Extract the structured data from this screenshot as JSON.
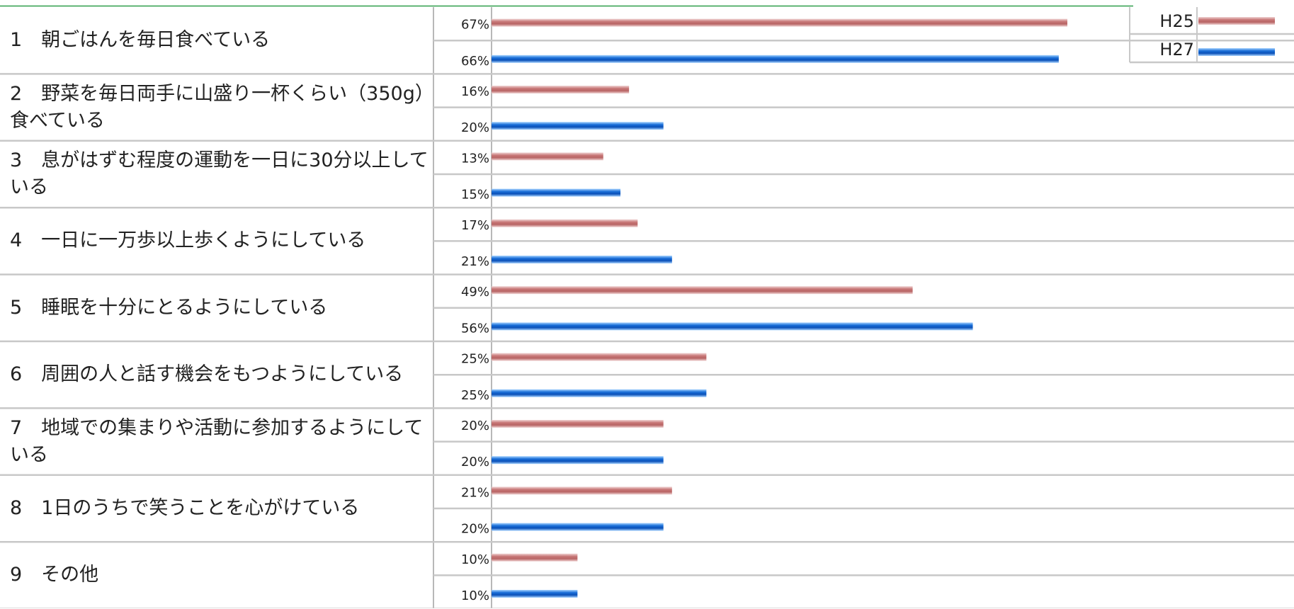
{
  "chart_data": {
    "type": "bar",
    "orientation": "horizontal",
    "categories": [
      "1　朝ごはんを毎日食べている",
      "2　野菜を毎日両手に山盛り一杯くらい（350g）食べている",
      "3　息がはずむ程度の運動を一日に30分以上している",
      "4　一日に一万歩以上歩くようにしている",
      "5　睡眠を十分にとるようにしている",
      "6　周囲の人と話す機会をもつようにしている",
      "7　地域での集まりや活動に参加するようにしている",
      "8　1日のうちで笑うことを心がけている",
      "9　その他"
    ],
    "series": [
      {
        "name": "H25",
        "color": "#c87878",
        "values": [
          67,
          16,
          13,
          17,
          49,
          25,
          20,
          21,
          10
        ]
      },
      {
        "name": "H27",
        "color": "#1a6fd8",
        "values": [
          66,
          20,
          15,
          21,
          56,
          25,
          20,
          20,
          10
        ]
      }
    ],
    "value_suffix": "%",
    "xlim": [
      0,
      100
    ],
    "grid": true,
    "legend": "top-right"
  }
}
